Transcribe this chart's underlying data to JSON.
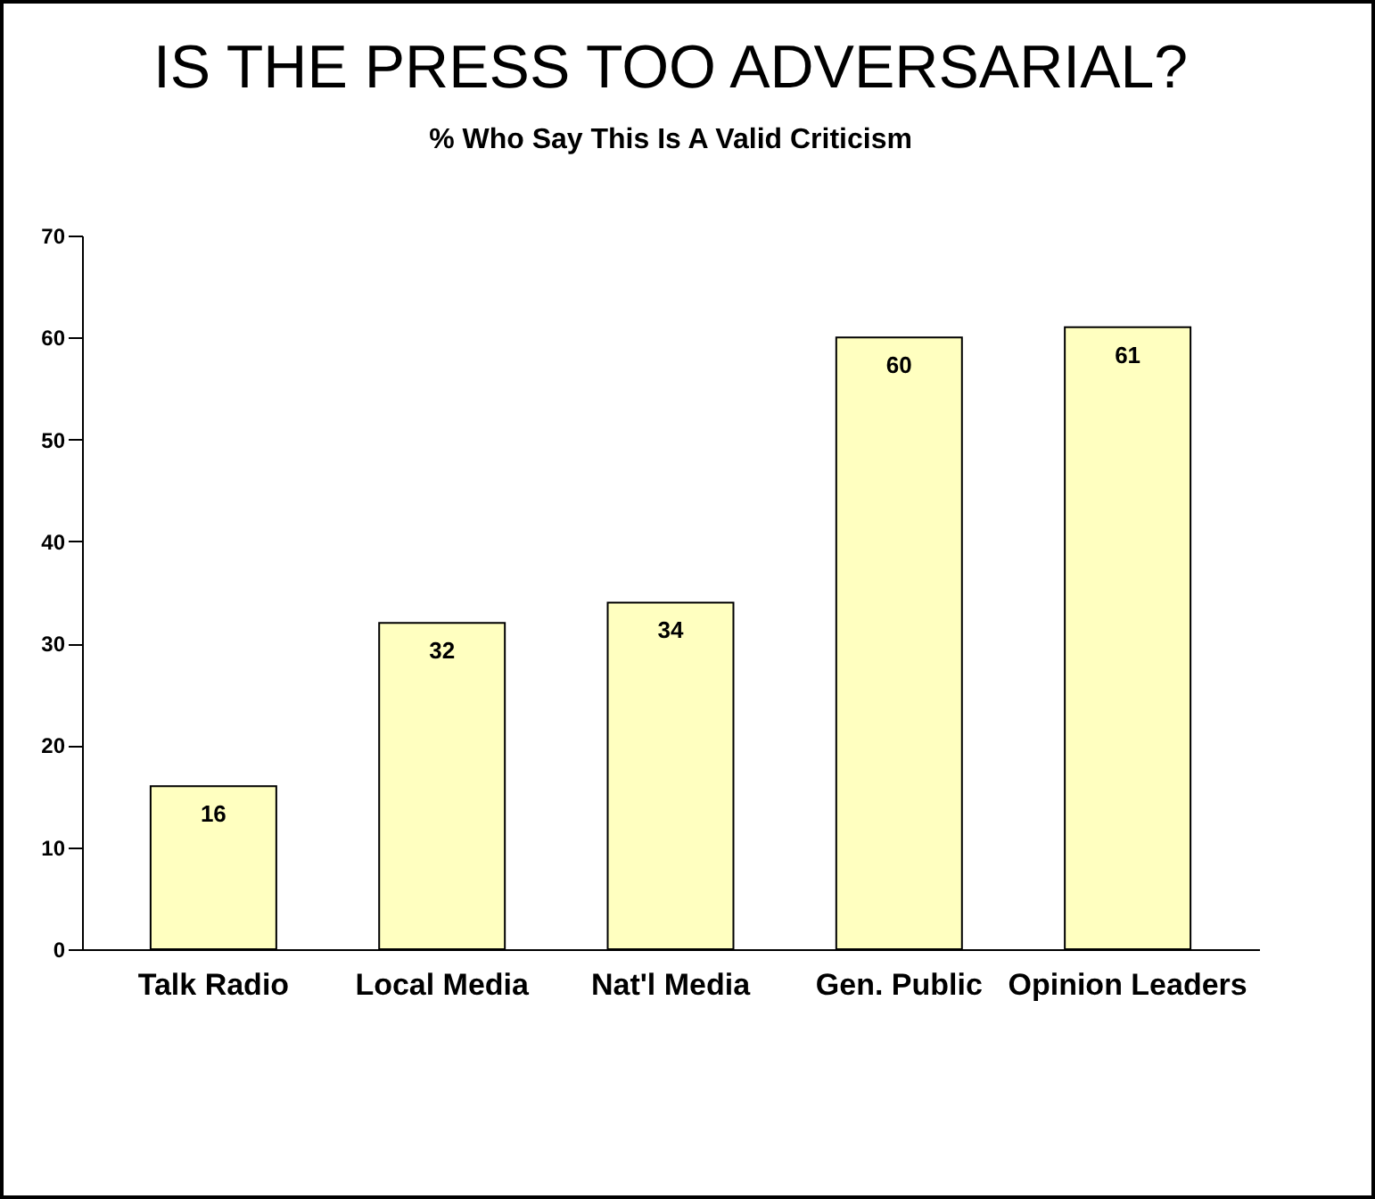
{
  "chart_data": {
    "type": "bar",
    "title": "IS THE PRESS TOO ADVERSARIAL?",
    "subtitle": "% Who Say This Is A Valid Criticism",
    "categories": [
      "Talk Radio",
      "Local Media",
      "Nat'l Media",
      "Gen. Public",
      "Opinion Leaders"
    ],
    "values": [
      16,
      32,
      34,
      60,
      61
    ],
    "color": "#ffffc0",
    "ylim": [
      0,
      70
    ],
    "yticks": [
      0,
      10,
      20,
      30,
      40,
      50,
      60,
      70
    ],
    "grid": false,
    "data_labels": true
  }
}
